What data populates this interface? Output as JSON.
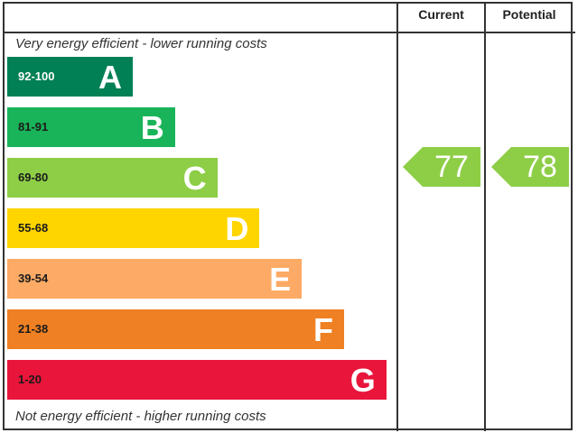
{
  "chart_data": {
    "type": "bar",
    "header": {
      "current": "Current",
      "potential": "Potential"
    },
    "top_note": "Very energy efficient - lower running costs",
    "bottom_note": "Not energy efficient - higher running costs",
    "bands": [
      {
        "range": "92-100",
        "letter": "A",
        "color": "#008054",
        "text_color": "#ffffff"
      },
      {
        "range": "81-91",
        "letter": "B",
        "color": "#19b459",
        "text_color": "#1a1a1a"
      },
      {
        "range": "69-80",
        "letter": "C",
        "color": "#8dce46",
        "text_color": "#1a1a1a"
      },
      {
        "range": "55-68",
        "letter": "D",
        "color": "#ffd500",
        "text_color": "#1a1a1a"
      },
      {
        "range": "39-54",
        "letter": "E",
        "color": "#fcaa65",
        "text_color": "#1a1a1a"
      },
      {
        "range": "21-38",
        "letter": "F",
        "color": "#ef8023",
        "text_color": "#1a1a1a"
      },
      {
        "range": "1-20",
        "letter": "G",
        "color": "#e9153b",
        "text_color": "#1a1a1a"
      }
    ],
    "current": {
      "value": 77,
      "band": "C",
      "color": "#8dce46"
    },
    "potential": {
      "value": 78,
      "band": "C",
      "color": "#8dce46"
    }
  }
}
